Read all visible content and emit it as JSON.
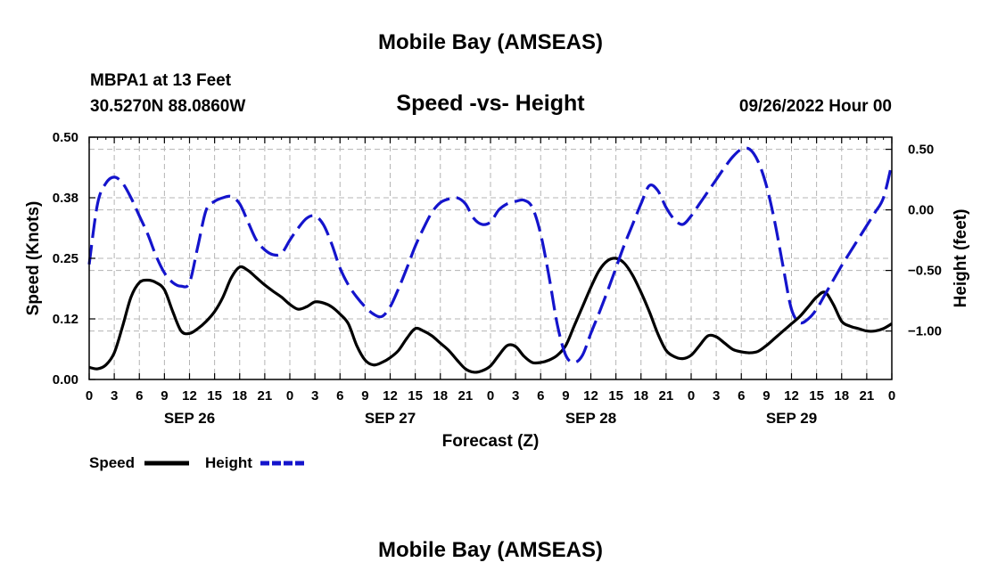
{
  "page": {
    "title": "Mobile Bay (AMSEAS)",
    "footer_title": "Mobile Bay (AMSEAS)"
  },
  "chart_data": {
    "type": "line",
    "title": "Speed -vs- Height",
    "station": "MBPA1 at 13 Feet",
    "location": "30.5270N  88.0860W",
    "datetime": "09/26/2022 Hour 00",
    "xlabel": "Forecast (Z)",
    "ylabel_left": "Speed (Knots)",
    "ylabel_right": "Height (feet)",
    "x_unit": "hours from 09/26/2022 00Z",
    "xlim": [
      0,
      96
    ],
    "ylim_left": [
      0,
      0.5
    ],
    "ylim_right": [
      -1.4,
      0.6
    ],
    "x_ticks": [
      0,
      3,
      6,
      9,
      12,
      15,
      18,
      21,
      24,
      27,
      30,
      33,
      36,
      39,
      42,
      45,
      48,
      51,
      54,
      57,
      60,
      63,
      66,
      69,
      72,
      75,
      78,
      81,
      84,
      87,
      90,
      93,
      96
    ],
    "x_tick_labels": [
      "0",
      "3",
      "6",
      "9",
      "12",
      "15",
      "18",
      "21",
      "0",
      "3",
      "6",
      "9",
      "12",
      "15",
      "18",
      "21",
      "0",
      "3",
      "6",
      "9",
      "12",
      "15",
      "18",
      "21",
      "0",
      "3",
      "6",
      "9",
      "12",
      "15",
      "18",
      "21",
      "0"
    ],
    "date_labels": [
      {
        "x": 12,
        "label": "SEP 26"
      },
      {
        "x": 36,
        "label": "SEP 27"
      },
      {
        "x": 60,
        "label": "SEP 28"
      },
      {
        "x": 84,
        "label": "SEP 29"
      }
    ],
    "y_left_ticks": [
      0.0,
      0.125,
      0.25,
      0.375,
      0.5
    ],
    "y_left_tick_labels": [
      "0.00",
      "0.12",
      "0.25",
      "0.38",
      "0.50"
    ],
    "y_right_ticks": [
      -1.0,
      -0.5,
      0.0,
      0.5
    ],
    "y_right_tick_labels": [
      "−1.00",
      "−0.50",
      "0.00",
      "0.50"
    ],
    "grid": true,
    "legend_position": "bottom-left",
    "series": [
      {
        "name": "Speed",
        "axis": "left",
        "color": "#000000",
        "dash": "solid",
        "x": [
          0,
          1,
          2,
          3,
          4,
          5,
          6,
          7,
          8,
          9,
          10,
          11,
          12,
          13,
          14,
          15,
          16,
          17,
          18,
          19,
          20,
          21,
          22,
          23,
          24,
          25,
          26,
          27,
          28,
          29,
          30,
          31,
          32,
          33,
          34,
          35,
          36,
          37,
          38,
          39,
          40,
          41,
          42,
          43,
          44,
          45,
          46,
          47,
          48,
          49,
          50,
          51,
          52,
          53,
          54,
          55,
          56,
          57,
          58,
          59,
          60,
          61,
          62,
          63,
          64,
          65,
          66,
          67,
          68,
          69,
          70,
          71,
          72,
          73,
          74,
          75,
          76,
          77,
          78,
          79,
          80,
          81,
          82,
          83,
          84,
          85,
          86,
          87,
          88,
          89,
          90,
          91,
          92,
          93,
          94,
          95,
          96
        ],
        "values": [
          0.025,
          0.022,
          0.03,
          0.055,
          0.11,
          0.17,
          0.2,
          0.205,
          0.2,
          0.185,
          0.14,
          0.1,
          0.095,
          0.105,
          0.12,
          0.14,
          0.17,
          0.21,
          0.232,
          0.225,
          0.21,
          0.195,
          0.182,
          0.17,
          0.155,
          0.145,
          0.15,
          0.16,
          0.158,
          0.15,
          0.135,
          0.115,
          0.07,
          0.04,
          0.03,
          0.035,
          0.045,
          0.06,
          0.085,
          0.105,
          0.1,
          0.09,
          0.075,
          0.06,
          0.04,
          0.022,
          0.015,
          0.018,
          0.028,
          0.05,
          0.07,
          0.068,
          0.048,
          0.035,
          0.035,
          0.04,
          0.05,
          0.07,
          0.11,
          0.15,
          0.19,
          0.225,
          0.245,
          0.25,
          0.24,
          0.215,
          0.18,
          0.14,
          0.095,
          0.06,
          0.047,
          0.043,
          0.05,
          0.07,
          0.09,
          0.088,
          0.075,
          0.062,
          0.057,
          0.055,
          0.058,
          0.07,
          0.085,
          0.1,
          0.115,
          0.13,
          0.15,
          0.17,
          0.18,
          0.155,
          0.12,
          0.11,
          0.105,
          0.1,
          0.1,
          0.105,
          0.115
        ]
      },
      {
        "name": "Height",
        "axis": "right",
        "color": "#1414cc",
        "dash": "dashed",
        "x": [
          0,
          1,
          2,
          3,
          4,
          5,
          6,
          7,
          8,
          9,
          10,
          11,
          12,
          13,
          14,
          15,
          16,
          17,
          18,
          19,
          20,
          21,
          22,
          23,
          24,
          25,
          26,
          27,
          28,
          29,
          30,
          31,
          32,
          33,
          34,
          35,
          36,
          37,
          38,
          39,
          40,
          41,
          42,
          43,
          44,
          45,
          46,
          47,
          48,
          49,
          50,
          51,
          52,
          53,
          54,
          55,
          56,
          57,
          58,
          59,
          60,
          61,
          62,
          63,
          64,
          65,
          66,
          67,
          68,
          69,
          70,
          71,
          72,
          73,
          74,
          75,
          76,
          77,
          78,
          79,
          80,
          81,
          82,
          83,
          84,
          85,
          86,
          87,
          88,
          89,
          90,
          91,
          92,
          93,
          94,
          95,
          96
        ],
        "values": [
          -0.45,
          0.05,
          0.22,
          0.27,
          0.22,
          0.1,
          -0.05,
          -0.2,
          -0.38,
          -0.52,
          -0.6,
          -0.63,
          -0.6,
          -0.3,
          0.0,
          0.07,
          0.1,
          0.11,
          0.05,
          -0.1,
          -0.25,
          -0.33,
          -0.37,
          -0.36,
          -0.25,
          -0.15,
          -0.07,
          -0.05,
          -0.12,
          -0.28,
          -0.48,
          -0.62,
          -0.72,
          -0.8,
          -0.86,
          -0.88,
          -0.8,
          -0.65,
          -0.48,
          -0.3,
          -0.15,
          -0.02,
          0.06,
          0.09,
          0.1,
          0.05,
          -0.07,
          -0.12,
          -0.1,
          0.0,
          0.05,
          0.07,
          0.08,
          0.02,
          -0.2,
          -0.55,
          -0.95,
          -1.2,
          -1.26,
          -1.2,
          -1.02,
          -0.85,
          -0.67,
          -0.48,
          -0.29,
          -0.12,
          0.05,
          0.2,
          0.16,
          0.02,
          -0.08,
          -0.12,
          -0.05,
          0.05,
          0.15,
          0.25,
          0.35,
          0.44,
          0.5,
          0.5,
          0.4,
          0.2,
          -0.1,
          -0.47,
          -0.82,
          -0.93,
          -0.9,
          -0.82,
          -0.7,
          -0.58,
          -0.46,
          -0.35,
          -0.24,
          -0.13,
          -0.02,
          0.1,
          0.38
        ]
      }
    ]
  }
}
